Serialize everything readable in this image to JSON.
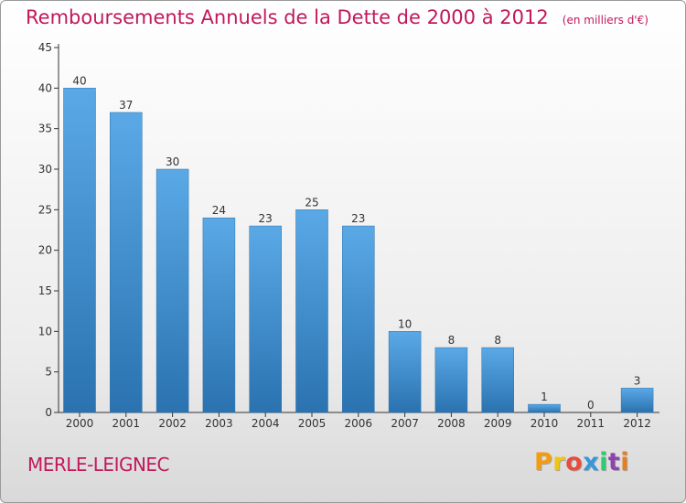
{
  "header": {
    "title": "Remboursements Annuels de la Dette de 2000 à 2012",
    "subtitle": "(en milliers d'€)"
  },
  "footer": {
    "city": "MERLE-LEIGNEC",
    "logo_text": "Proxiti"
  },
  "colors": {
    "title": "#c2185b",
    "bar_top": "#5aa9e6",
    "bar_bottom": "#2a72b0",
    "logo_letters": [
      "#f39c12",
      "#f1c40f",
      "#e74c3c",
      "#3498db",
      "#2ecc71",
      "#8e44ad",
      "#e67e22"
    ]
  },
  "chart_data": {
    "type": "bar",
    "categories": [
      "2000",
      "2001",
      "2002",
      "2003",
      "2004",
      "2005",
      "2006",
      "2007",
      "2008",
      "2009",
      "2010",
      "2011",
      "2012"
    ],
    "values": [
      40,
      37,
      30,
      24,
      23,
      25,
      23,
      10,
      8,
      8,
      1,
      0,
      3
    ],
    "data_labels": [
      "40",
      "37",
      "30",
      "24",
      "23",
      "25",
      "23",
      "10",
      "8",
      "8",
      "1",
      "0",
      "3"
    ],
    "y_ticks": [
      0,
      5,
      10,
      15,
      20,
      25,
      30,
      35,
      40,
      45
    ],
    "ylim": [
      0,
      45
    ],
    "grid": false,
    "legend": "none"
  }
}
